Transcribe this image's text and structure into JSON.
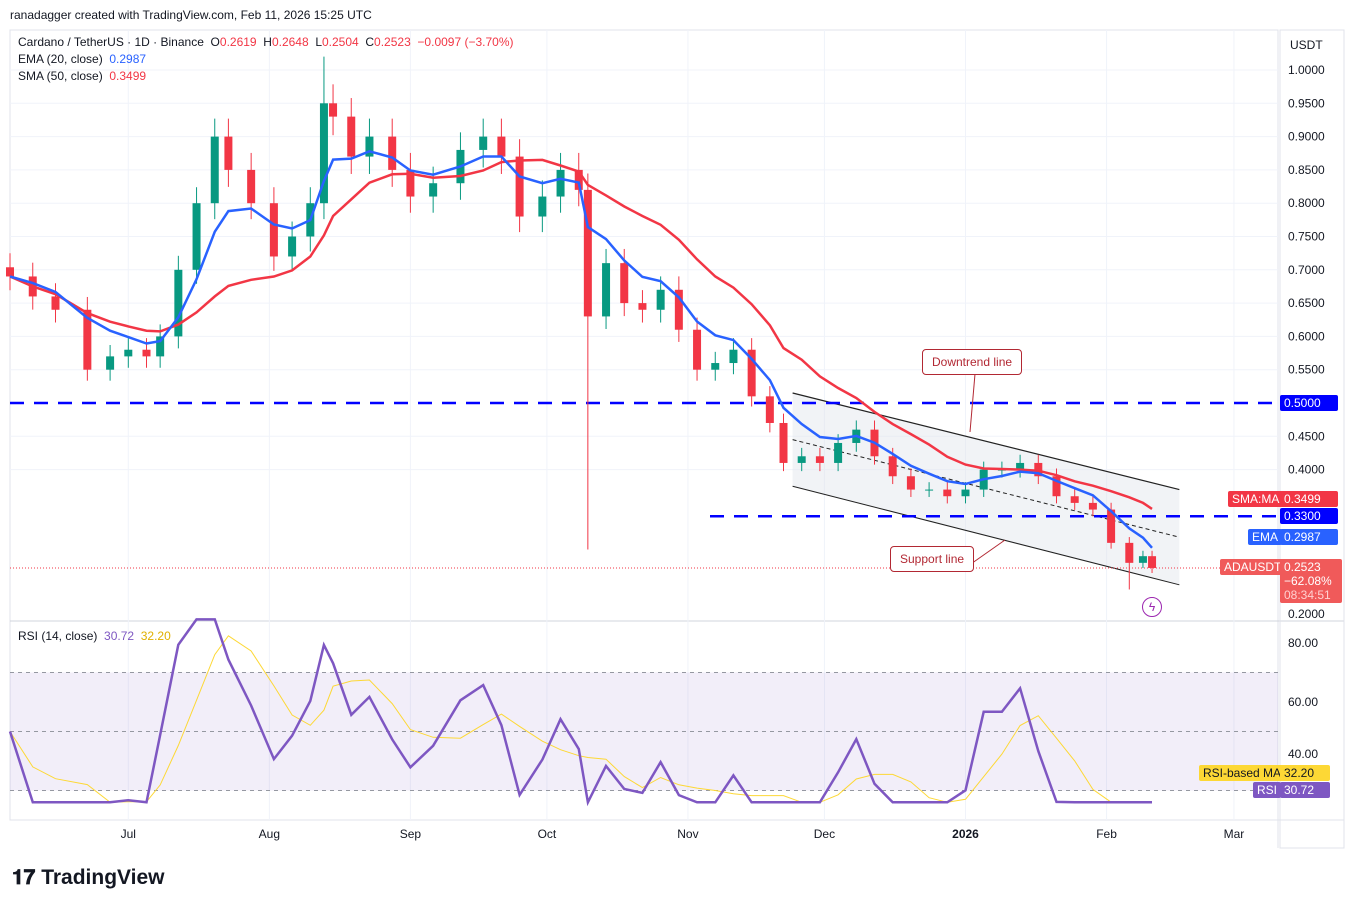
{
  "credit": "ranadagger created with TradingView.com, Feb 11, 2026 15:25 UTC",
  "legend": {
    "symbol": "Cardano / TetherUS · 1D · Binance",
    "o_label": "O",
    "o": "0.2619",
    "h_label": "H",
    "h": "0.2648",
    "l_label": "L",
    "l": "0.2504",
    "c_label": "C",
    "c": "0.2523",
    "change": "−0.0097 (−3.70%)",
    "ema_label": "EMA (20, close)",
    "ema_value": "0.2987",
    "sma_label": "SMA (50, close)",
    "sma_value": "0.3499",
    "rsi_label": "RSI (14, close)",
    "rsi_value": "30.72",
    "rsi_ma_value": "32.20"
  },
  "currency": "USDT",
  "scale_labels": {
    "sma_tag": "SMA:MA",
    "sma_val": "0.3499",
    "level_330": "0.3300",
    "level_500": "0.5000",
    "ema_tag": "EMA",
    "ema_val": "0.2987",
    "symbol_tag": "ADAUSDT",
    "price": "0.2523",
    "pct": "−62.08%",
    "countdown": "08:34:51",
    "rsi_ma_tag": "RSI-based MA",
    "rsi_ma_val": "32.20",
    "rsi_tag": "RSI",
    "rsi_val": "30.72"
  },
  "annotations": {
    "downtrend": "Downtrend line",
    "support": "Support line"
  },
  "logo": "TradingView",
  "colors": {
    "up": "#089981",
    "down": "#f23645",
    "ema": "#2962ff",
    "sma": "#f23645",
    "rsi": "#7e57c2",
    "rsi_ma": "#fdd835",
    "level": "#0000ff"
  },
  "chart_data": {
    "type": "candlestick",
    "price_axis": {
      "min": 0.2,
      "max": 1.0,
      "ticks": [
        "1.0000",
        "0.9500",
        "0.9000",
        "0.8500",
        "0.8000",
        "0.7500",
        "0.7000",
        "0.6500",
        "0.6000",
        "0.5500",
        "0.4500",
        "0.4000"
      ]
    },
    "time_axis": {
      "ticks": [
        {
          "label": "Jul",
          "date": "2025-07-01"
        },
        {
          "label": "Aug",
          "date": "2025-08-01"
        },
        {
          "label": "Sep",
          "date": "2025-09-01"
        },
        {
          "label": "Oct",
          "date": "2025-10-01"
        },
        {
          "label": "Nov",
          "date": "2025-11-01"
        },
        {
          "label": "Dec",
          "date": "2025-12-01"
        },
        {
          "label": "2026",
          "date": "2026-01-01"
        },
        {
          "label": "Feb",
          "date": "2026-02-01"
        },
        {
          "label": "Mar",
          "date": "2026-03-01"
        }
      ]
    },
    "dates": [
      "2025-06-05",
      "2025-06-10",
      "2025-06-15",
      "2025-06-22",
      "2025-06-27",
      "2025-07-01",
      "2025-07-05",
      "2025-07-08",
      "2025-07-12",
      "2025-07-16",
      "2025-07-20",
      "2025-07-23",
      "2025-07-28",
      "2025-08-02",
      "2025-08-06",
      "2025-08-10",
      "2025-08-13",
      "2025-08-15",
      "2025-08-19",
      "2025-08-23",
      "2025-08-28",
      "2025-09-01",
      "2025-09-06",
      "2025-09-12",
      "2025-09-17",
      "2025-09-21",
      "2025-09-25",
      "2025-09-30",
      "2025-10-04",
      "2025-10-08",
      "2025-10-10",
      "2025-10-14",
      "2025-10-18",
      "2025-10-22",
      "2025-10-26",
      "2025-10-30",
      "2025-11-03",
      "2025-11-07",
      "2025-11-11",
      "2025-11-15",
      "2025-11-19",
      "2025-11-22",
      "2025-11-26",
      "2025-11-30",
      "2025-12-04",
      "2025-12-08",
      "2025-12-12",
      "2025-12-16",
      "2025-12-20",
      "2025-12-24",
      "2025-12-28",
      "2026-01-01",
      "2026-01-05",
      "2026-01-09",
      "2026-01-13",
      "2026-01-17",
      "2026-01-21",
      "2026-01-25",
      "2026-01-29",
      "2026-02-02",
      "2026-02-06",
      "2026-02-09",
      "2026-02-11"
    ],
    "closes": [
      0.69,
      0.66,
      0.64,
      0.55,
      0.57,
      0.58,
      0.57,
      0.6,
      0.7,
      0.8,
      0.9,
      0.85,
      0.8,
      0.72,
      0.75,
      0.8,
      0.95,
      0.93,
      0.87,
      0.9,
      0.85,
      0.81,
      0.83,
      0.88,
      0.9,
      0.87,
      0.78,
      0.81,
      0.85,
      0.82,
      0.63,
      0.71,
      0.65,
      0.64,
      0.67,
      0.61,
      0.55,
      0.56,
      0.58,
      0.51,
      0.47,
      0.41,
      0.42,
      0.41,
      0.44,
      0.46,
      0.42,
      0.39,
      0.37,
      0.37,
      0.36,
      0.37,
      0.4,
      0.4,
      0.41,
      0.39,
      0.36,
      0.35,
      0.34,
      0.29,
      0.26,
      0.27,
      0.2523
    ],
    "notable_wicks": [
      {
        "date": "2025-10-10",
        "low": 0.28
      },
      {
        "date": "2025-08-13",
        "high": 1.02
      },
      {
        "date": "2026-02-06",
        "low": 0.22
      }
    ],
    "levels": [
      {
        "price": 0.5,
        "label": "0.5000"
      },
      {
        "price": 0.33,
        "label": "0.3300"
      }
    ],
    "channel": {
      "upper": [
        {
          "date": "2025-11-24",
          "price": 0.515
        },
        {
          "date": "2026-02-17",
          "price": 0.37
        }
      ],
      "lower": [
        {
          "date": "2025-11-24",
          "price": 0.375
        },
        {
          "date": "2026-02-17",
          "price": 0.227
        }
      ]
    },
    "rsi_axis": {
      "ticks": [
        "80.00",
        "60.00",
        "40.00"
      ],
      "band": [
        30,
        70
      ]
    }
  }
}
